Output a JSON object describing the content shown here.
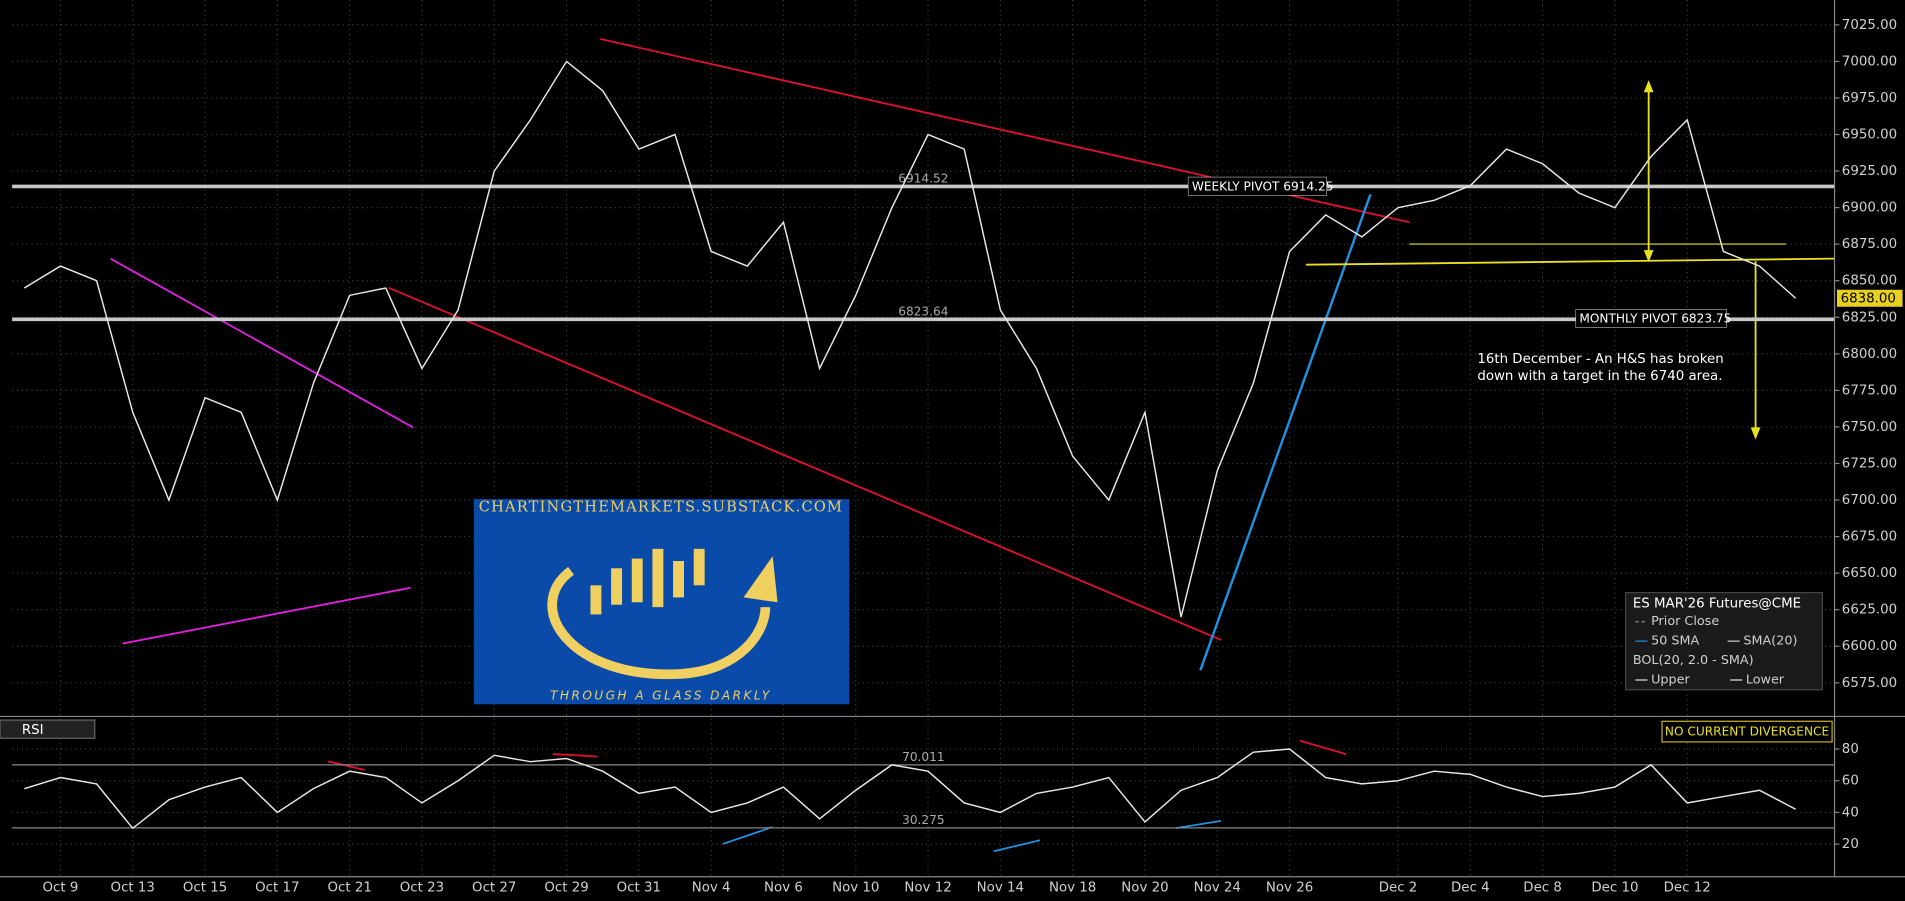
{
  "chart_data": [
    {
      "type": "line",
      "categories": [
        null,
        "Oct 9",
        null,
        "Oct 13",
        null,
        "Oct 15",
        null,
        "Oct 17",
        null,
        "Oct 21",
        null,
        "Oct 23",
        null,
        "Oct 27",
        null,
        "Oct 29",
        null,
        "Oct 31",
        null,
        "Nov 4",
        null,
        "Nov 6",
        null,
        "Nov 10",
        null,
        "Nov 12",
        null,
        "Nov 14",
        null,
        "Nov 18",
        null,
        "Nov 20",
        null,
        "Nov 24",
        null,
        "Nov 26",
        null,
        null,
        "Dec 2",
        null,
        "Dec 4",
        null,
        "Dec 8",
        null,
        "Dec 10",
        null,
        "Dec 12",
        null,
        null,
        null
      ],
      "series": [
        {
          "name": "ES MAR'26 Futures@CME",
          "color": "#e8e8e8",
          "values": [
            6845,
            6860,
            6850,
            6760,
            6700,
            6770,
            6760,
            6700,
            6780,
            6840,
            6845,
            6790,
            6830,
            6925,
            6960,
            7000,
            6980,
            6940,
            6950,
            6870,
            6860,
            6890,
            6790,
            6840,
            6900,
            6950,
            6940,
            6830,
            6790,
            6730,
            6700,
            6760,
            6620,
            6720,
            6780,
            6870,
            6895,
            6880,
            6900,
            6905,
            6915,
            6940,
            6930,
            6910,
            6900,
            6935,
            6960,
            6870,
            6860,
            6838
          ]
        }
      ],
      "last_value": {
        "value": 6838,
        "label": "6838.00"
      },
      "ylim": [
        6552,
        7042
      ],
      "yticks": [
        {
          "value": 6575,
          "label": "6575.00"
        },
        {
          "value": 6600,
          "label": "6600.00"
        },
        {
          "value": 6625,
          "label": "6625.00"
        },
        {
          "value": 6650,
          "label": "6650.00"
        },
        {
          "value": 6675,
          "label": "6675.00"
        },
        {
          "value": 6700,
          "label": "6700.00"
        },
        {
          "value": 6725,
          "label": "6725.00"
        },
        {
          "value": 6750,
          "label": "6750.00"
        },
        {
          "value": 6775,
          "label": "6775.00"
        },
        {
          "value": 6800,
          "label": "6800.00"
        },
        {
          "value": 6825,
          "label": "6825.00"
        },
        {
          "value": 6850,
          "label": "6850.00"
        },
        {
          "value": 6875,
          "label": "6875.00"
        },
        {
          "value": 6900,
          "label": "6900.00"
        },
        {
          "value": 6925,
          "label": "6925.00"
        },
        {
          "value": 6950,
          "label": "6950.00"
        },
        {
          "value": 6975,
          "label": "6975.00"
        },
        {
          "value": 7000,
          "label": "7000.00"
        },
        {
          "value": 7025,
          "label": "7025.00"
        }
      ],
      "levels": [
        6914.52,
        6823.64
      ],
      "pivot_lines": [
        {
          "value": 6914.25,
          "label": "WEEKLY PIVOT 6914.25"
        },
        {
          "value": 6823.75,
          "label": "MONTHLY PIVOT 6823.75"
        }
      ],
      "annotation": "16th December - An H&S has broken down with a target in the 6740 area.",
      "legend": {
        "title": "ES MAR'26 Futures@CME",
        "items": [
          "Prior Close",
          "50 SMA",
          "SMA(20)",
          "BOL(20, 2.0 - SMA)",
          "Upper",
          "Lower"
        ],
        "position": "bottom-right"
      },
      "grid": true
    },
    {
      "type": "line",
      "title": "RSI",
      "annotation": "NO CURRENT DIVERGENCE",
      "series": [
        {
          "name": "RSI",
          "color": "#e8e8e8",
          "values": [
            55,
            62,
            58,
            30,
            48,
            56,
            62,
            40,
            55,
            66,
            62,
            46,
            60,
            76,
            72,
            74,
            66,
            52,
            56,
            40,
            46,
            56,
            36,
            54,
            70,
            66,
            46,
            40,
            52,
            56,
            62,
            34,
            54,
            62,
            78,
            80,
            62,
            58,
            60,
            66,
            64,
            56,
            50,
            52,
            56,
            70,
            46,
            50,
            54,
            42
          ]
        }
      ],
      "ylim": [
        1,
        99
      ],
      "yticks": [
        20,
        40,
        60,
        80
      ],
      "levels": [
        70.011,
        30.275
      ],
      "grid": true
    }
  ],
  "logo": {
    "url": "CHARTINGTHEMARKETS.SUBSTACK.COM",
    "tagline": "THROUGH A GLASS DARKLY"
  }
}
